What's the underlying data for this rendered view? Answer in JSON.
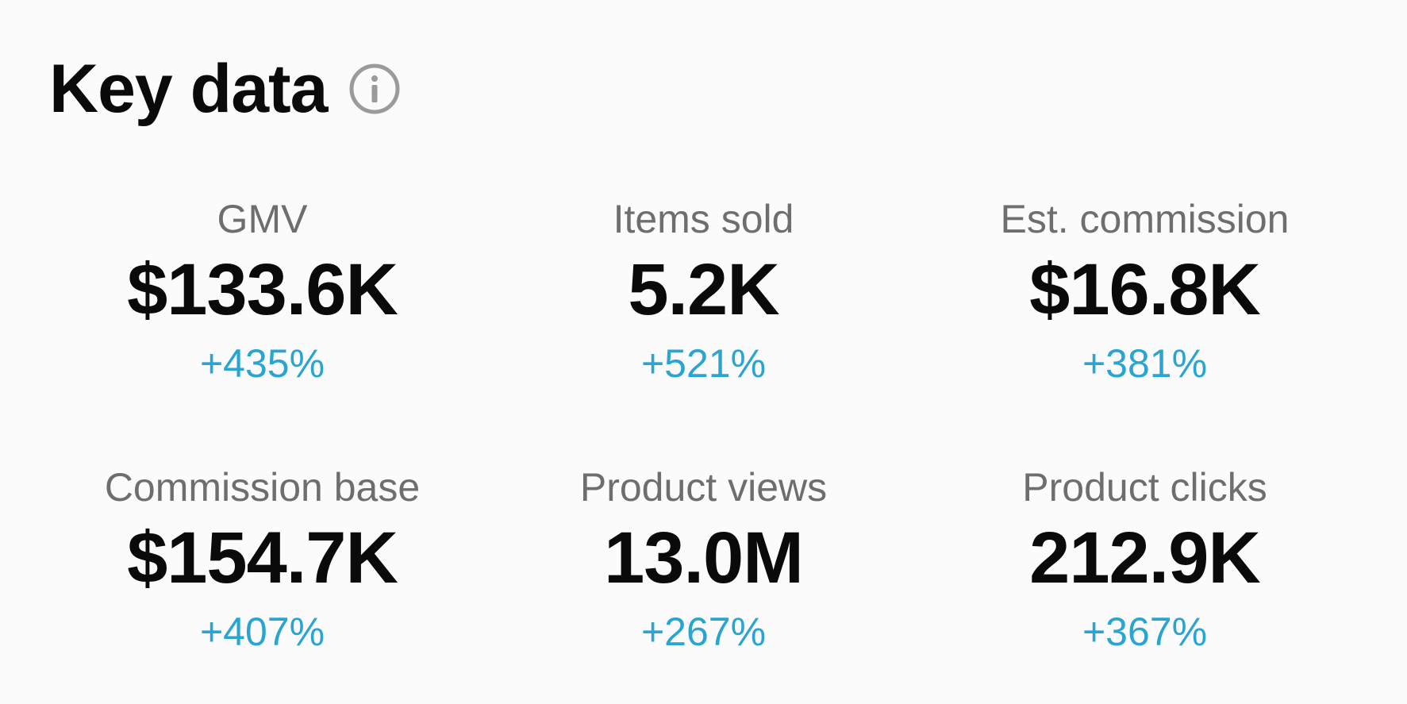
{
  "header": {
    "title": "Key data",
    "info_icon": "info-icon"
  },
  "colors": {
    "change_positive": "#2aa5d2",
    "label": "#6e6e6e",
    "value": "#0a0a0a"
  },
  "metrics": [
    {
      "label": "GMV",
      "value": "$133.6K",
      "change": "+435%"
    },
    {
      "label": "Items sold",
      "value": "5.2K",
      "change": "+521%"
    },
    {
      "label": "Est. commission",
      "value": "$16.8K",
      "change": "+381%"
    },
    {
      "label": "Commission base",
      "value": "$154.7K",
      "change": "+407%"
    },
    {
      "label": "Product views",
      "value": "13.0M",
      "change": "+267%"
    },
    {
      "label": "Product clicks",
      "value": "212.9K",
      "change": "+367%"
    }
  ]
}
